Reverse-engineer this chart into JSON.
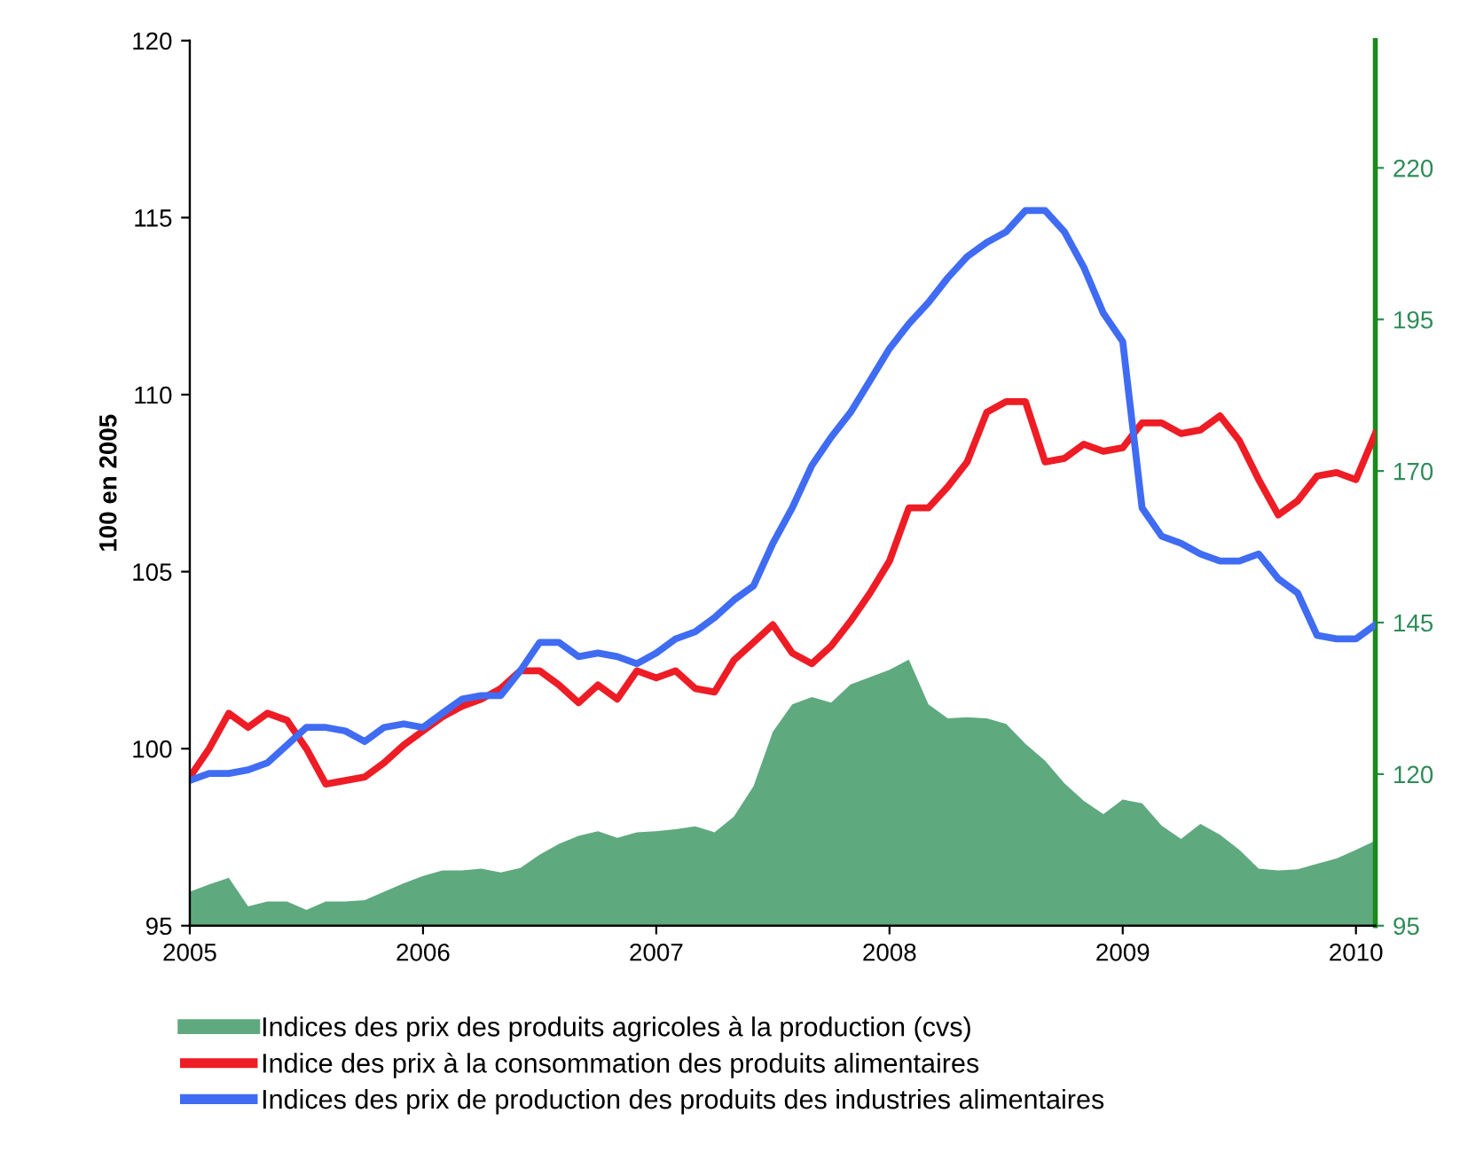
{
  "chart_data": {
    "type": "line",
    "ylabel": "100 en 2005",
    "x": [
      2005.0,
      2005.083,
      2005.167,
      2005.25,
      2005.333,
      2005.417,
      2005.5,
      2005.583,
      2005.667,
      2005.75,
      2005.833,
      2005.917,
      2006.0,
      2006.083,
      2006.167,
      2006.25,
      2006.333,
      2006.417,
      2006.5,
      2006.583,
      2006.667,
      2006.75,
      2006.833,
      2006.917,
      2007.0,
      2007.083,
      2007.167,
      2007.25,
      2007.333,
      2007.417,
      2007.5,
      2007.583,
      2007.667,
      2007.75,
      2007.833,
      2007.917,
      2008.0,
      2008.083,
      2008.167,
      2008.25,
      2008.333,
      2008.417,
      2008.5,
      2008.583,
      2008.667,
      2008.75,
      2008.833,
      2008.917,
      2009.0,
      2009.083,
      2009.167,
      2009.25,
      2009.333,
      2009.417,
      2009.5,
      2009.583,
      2009.667,
      2009.75,
      2009.833,
      2009.917,
      2010.0,
      2010.083
    ],
    "series": [
      {
        "name": "Indices des prix des produits agricoles à la production (cvs)",
        "type": "area",
        "axis": "y2",
        "color": "#5fa97f",
        "values": [
          100.6,
          101.8,
          102.9,
          98.2,
          99.0,
          99.0,
          97.6,
          99.0,
          99.0,
          99.2,
          100.6,
          102.0,
          103.2,
          104.1,
          104.1,
          104.4,
          103.8,
          104.5,
          106.7,
          108.5,
          109.8,
          110.6,
          109.5,
          110.4,
          110.6,
          110.9,
          111.4,
          110.4,
          113.0,
          118.0,
          127.0,
          131.5,
          132.7,
          131.8,
          134.8,
          136.0,
          137.2,
          138.9,
          131.5,
          129.2,
          129.4,
          129.2,
          128.3,
          125.0,
          122.2,
          118.5,
          115.6,
          113.4,
          115.8,
          115.2,
          111.5,
          109.3,
          111.8,
          110.0,
          107.5,
          104.4,
          104.1,
          104.3,
          105.2,
          106.1,
          107.5,
          109.0
        ]
      },
      {
        "name": "Indice des prix à la consommation des produits alimentaires",
        "color": "#ee1c25",
        "values": [
          99.2,
          100.0,
          101.0,
          100.6,
          101.0,
          100.8,
          100.0,
          99.0,
          99.1,
          99.2,
          99.6,
          100.1,
          100.5,
          100.9,
          101.2,
          101.4,
          101.7,
          102.2,
          102.2,
          101.8,
          101.3,
          101.8,
          101.4,
          102.2,
          102.0,
          102.2,
          101.7,
          101.6,
          102.5,
          103.0,
          103.5,
          102.7,
          102.4,
          102.9,
          103.6,
          104.4,
          105.3,
          106.8,
          106.8,
          107.4,
          108.1,
          109.5,
          109.8,
          109.8,
          108.1,
          108.2,
          108.6,
          108.4,
          108.5,
          109.2,
          109.2,
          108.9,
          109.0,
          109.4,
          108.7,
          107.6,
          106.6,
          107.0,
          107.7,
          107.8,
          107.6,
          108.9
        ]
      },
      {
        "name": "Indices des prix de production des produits des industries alimentaires",
        "color": "#3f6cf2",
        "values": [
          99.1,
          99.3,
          99.3,
          99.4,
          99.6,
          100.1,
          100.6,
          100.6,
          100.5,
          100.2,
          100.6,
          100.7,
          100.6,
          101.0,
          101.4,
          101.5,
          101.5,
          102.2,
          103.0,
          103.0,
          102.6,
          102.7,
          102.6,
          102.4,
          102.7,
          103.1,
          103.3,
          103.7,
          104.2,
          104.6,
          105.8,
          106.8,
          108.0,
          108.8,
          109.5,
          110.4,
          111.3,
          112.0,
          112.6,
          113.3,
          113.9,
          114.3,
          114.6,
          115.2,
          115.2,
          114.6,
          113.6,
          112.3,
          111.5,
          106.8,
          106.0,
          105.8,
          105.5,
          105.3,
          105.3,
          105.5,
          104.8,
          104.4,
          103.2,
          103.1,
          103.1,
          103.5
        ]
      }
    ],
    "xlim": [
      2005.0,
      2010.083
    ],
    "xticks": [
      2005,
      2006,
      2007,
      2008,
      2009,
      2010
    ],
    "ylim": [
      95,
      120
    ],
    "yticks": [
      95,
      100,
      105,
      110,
      115,
      120
    ],
    "y2lim": [
      95,
      241
    ],
    "y2ticks": [
      95,
      120,
      145,
      170,
      195,
      220
    ],
    "grid": false,
    "legend": "bottom",
    "line_style": "solid",
    "marker": "none"
  }
}
